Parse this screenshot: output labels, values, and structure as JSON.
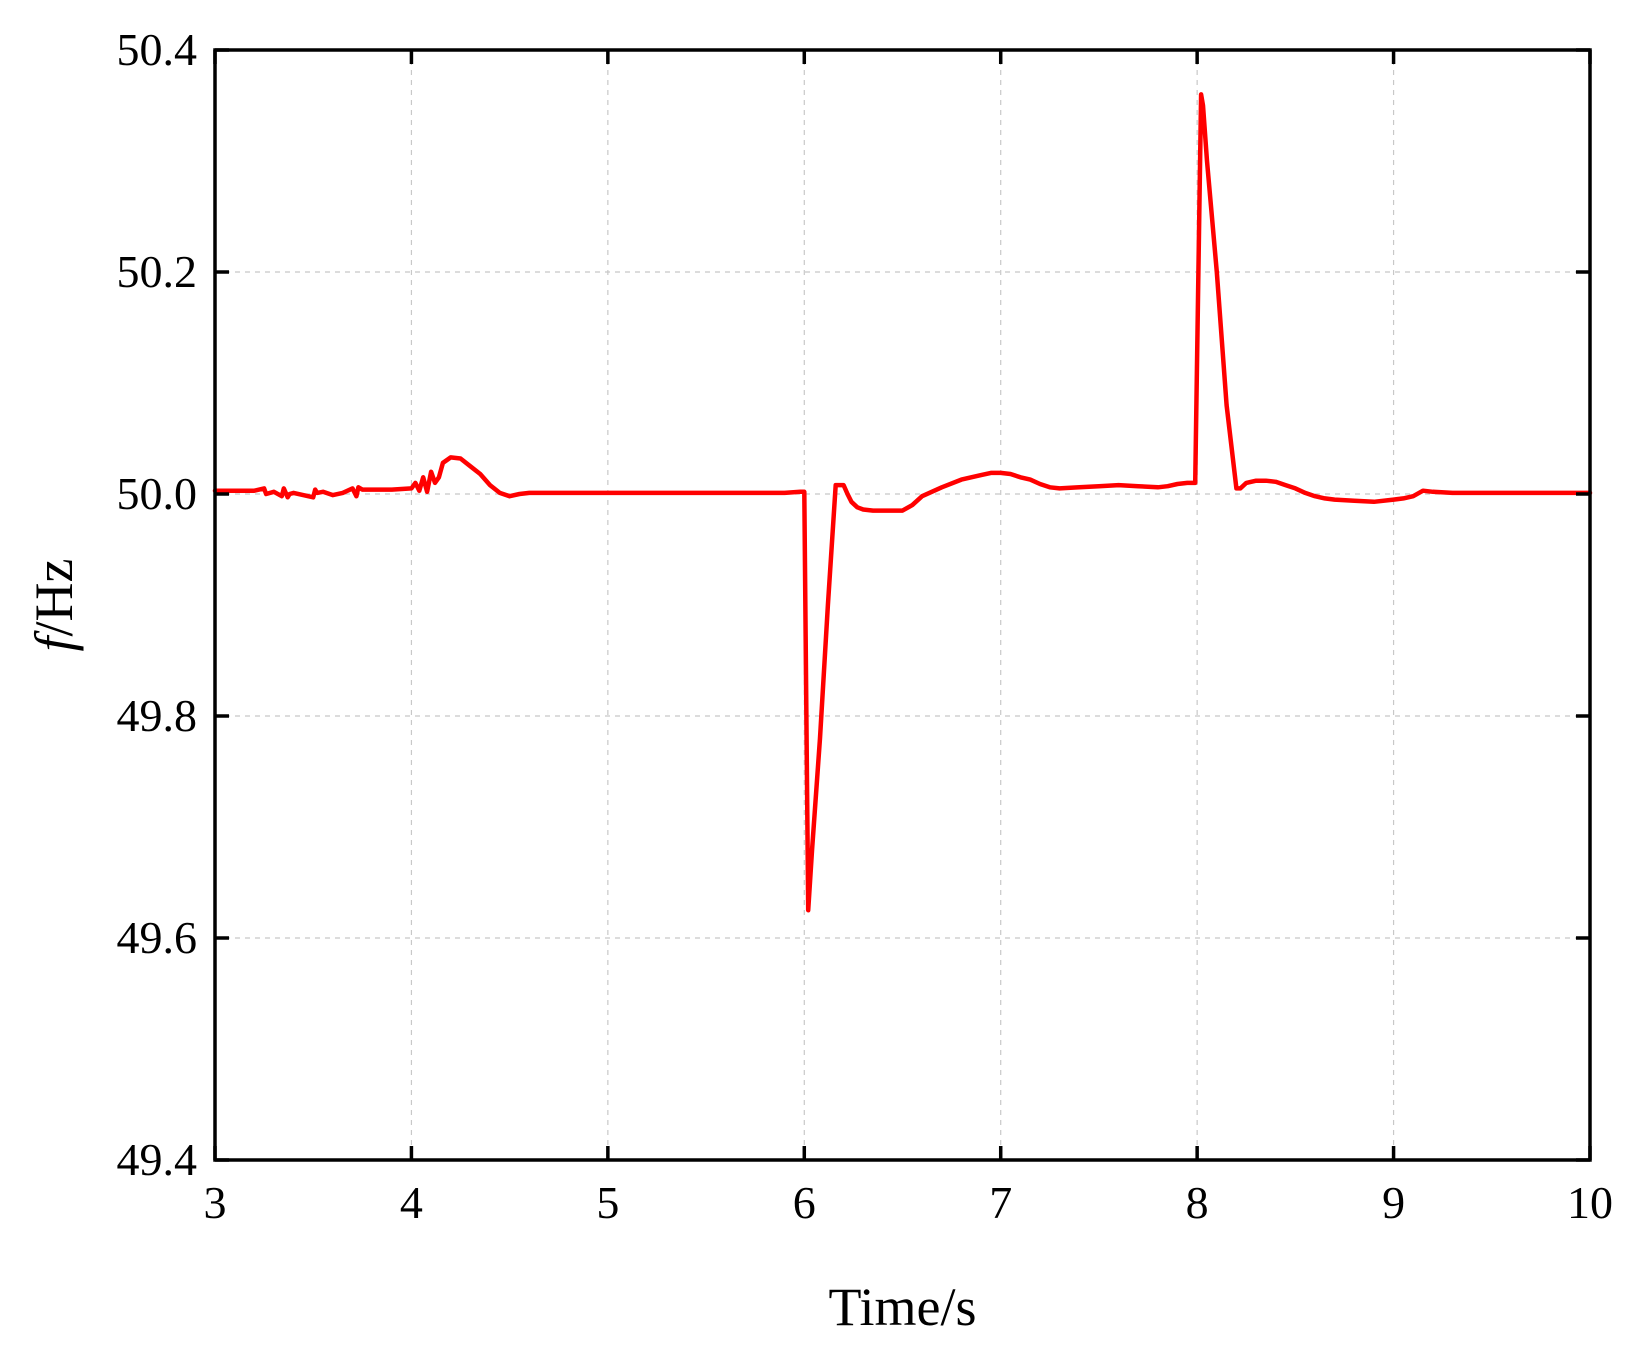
{
  "chart_data": {
    "type": "line",
    "xlabel": "Time/s",
    "ylabel_italic": "f",
    "ylabel_rest": "/Hz",
    "xlim": [
      3,
      10
    ],
    "ylim": [
      49.4,
      50.4
    ],
    "xticks": [
      3,
      4,
      5,
      6,
      7,
      8,
      9,
      10
    ],
    "xtick_labels": [
      "3",
      "4",
      "5",
      "6",
      "7",
      "8",
      "9",
      "10"
    ],
    "yticks": [
      49.4,
      49.6,
      49.8,
      50.0,
      50.2,
      50.4
    ],
    "ytick_labels": [
      "49.4",
      "49.6",
      "49.8",
      "50.0",
      "50.2",
      "50.4"
    ],
    "grid": true,
    "series": [
      {
        "color": "#ff0000",
        "x": [
          3.0,
          3.2,
          3.25,
          3.26,
          3.3,
          3.34,
          3.35,
          3.37,
          3.38,
          3.4,
          3.5,
          3.51,
          3.52,
          3.55,
          3.6,
          3.65,
          3.7,
          3.72,
          3.73,
          3.75,
          3.8,
          3.9,
          4.0,
          4.02,
          4.04,
          4.06,
          4.08,
          4.1,
          4.12,
          4.14,
          4.16,
          4.2,
          4.25,
          4.3,
          4.35,
          4.4,
          4.45,
          4.5,
          4.55,
          4.6,
          5.0,
          5.5,
          5.9,
          5.98,
          5.99,
          6.0,
          6.02,
          6.04,
          6.08,
          6.12,
          6.16,
          6.2,
          6.22,
          6.24,
          6.27,
          6.3,
          6.35,
          6.4,
          6.5,
          6.55,
          6.6,
          6.7,
          6.8,
          6.9,
          6.95,
          7.0,
          7.05,
          7.1,
          7.15,
          7.2,
          7.25,
          7.3,
          7.4,
          7.5,
          7.6,
          7.7,
          7.8,
          7.85,
          7.9,
          7.95,
          7.98,
          7.99,
          8.02,
          8.03,
          8.05,
          8.1,
          8.15,
          8.2,
          8.22,
          8.25,
          8.3,
          8.35,
          8.4,
          8.45,
          8.5,
          8.55,
          8.6,
          8.65,
          8.7,
          8.8,
          8.9,
          9.0,
          9.05,
          9.1,
          9.15,
          9.2,
          9.3,
          9.5,
          10.0
        ],
        "y": [
          50.003,
          50.003,
          50.005,
          50.0,
          50.002,
          49.998,
          50.005,
          49.997,
          50.0,
          50.001,
          49.997,
          50.004,
          50.001,
          50.002,
          49.999,
          50.001,
          50.005,
          49.998,
          50.006,
          50.004,
          50.004,
          50.004,
          50.005,
          50.01,
          50.003,
          50.015,
          50.002,
          50.02,
          50.01,
          50.015,
          50.028,
          50.033,
          50.032,
          50.025,
          50.018,
          50.008,
          50.001,
          49.998,
          50.0,
          50.001,
          50.001,
          50.001,
          50.001,
          50.002,
          50.002,
          50.002,
          49.625,
          49.68,
          49.78,
          49.9,
          50.008,
          50.008,
          50.0,
          49.993,
          49.988,
          49.986,
          49.985,
          49.985,
          49.985,
          49.99,
          49.998,
          50.006,
          50.013,
          50.017,
          50.019,
          50.019,
          50.018,
          50.015,
          50.013,
          50.009,
          50.006,
          50.005,
          50.006,
          50.007,
          50.008,
          50.007,
          50.006,
          50.007,
          50.009,
          50.01,
          50.01,
          50.01,
          50.36,
          50.35,
          50.3,
          50.2,
          50.08,
          50.005,
          50.005,
          50.01,
          50.012,
          50.012,
          50.011,
          50.008,
          50.005,
          50.001,
          49.998,
          49.996,
          49.995,
          49.994,
          49.993,
          49.995,
          49.996,
          49.998,
          50.003,
          50.002,
          50.001,
          50.001,
          50.001
        ]
      }
    ]
  }
}
